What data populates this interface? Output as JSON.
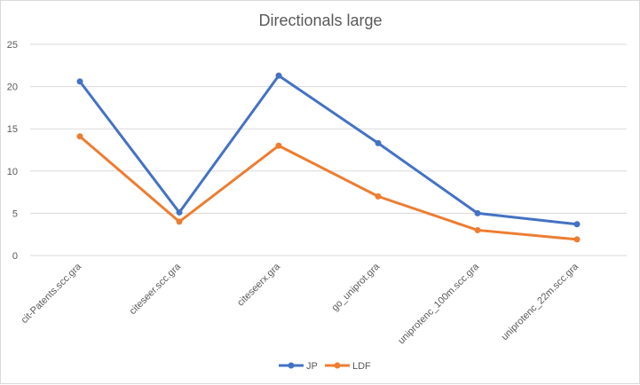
{
  "chart_data": {
    "type": "line",
    "title": "Directionals large",
    "xlabel": "",
    "ylabel": "",
    "categories": [
      "cit-Patents.scc.gra",
      "citeseer.scc.gra",
      "citeseerx.gra",
      "go_uniprot.gra",
      "uniprotenc_100m.scc.gra",
      "uniprotenc_22m.scc.gra"
    ],
    "yticks": [
      "0",
      "5",
      "10",
      "15",
      "20",
      "25"
    ],
    "ylim": [
      0,
      25
    ],
    "grid": true,
    "legend": "bottom",
    "series": [
      {
        "name": "JP",
        "color": "#4472C4",
        "values": [
          20.6,
          5.1,
          21.3,
          13.3,
          5.0,
          3.7
        ]
      },
      {
        "name": "LDF",
        "color": "#ED7D31",
        "values": [
          14.1,
          4.0,
          13.0,
          7.0,
          3.0,
          1.9
        ]
      }
    ]
  }
}
